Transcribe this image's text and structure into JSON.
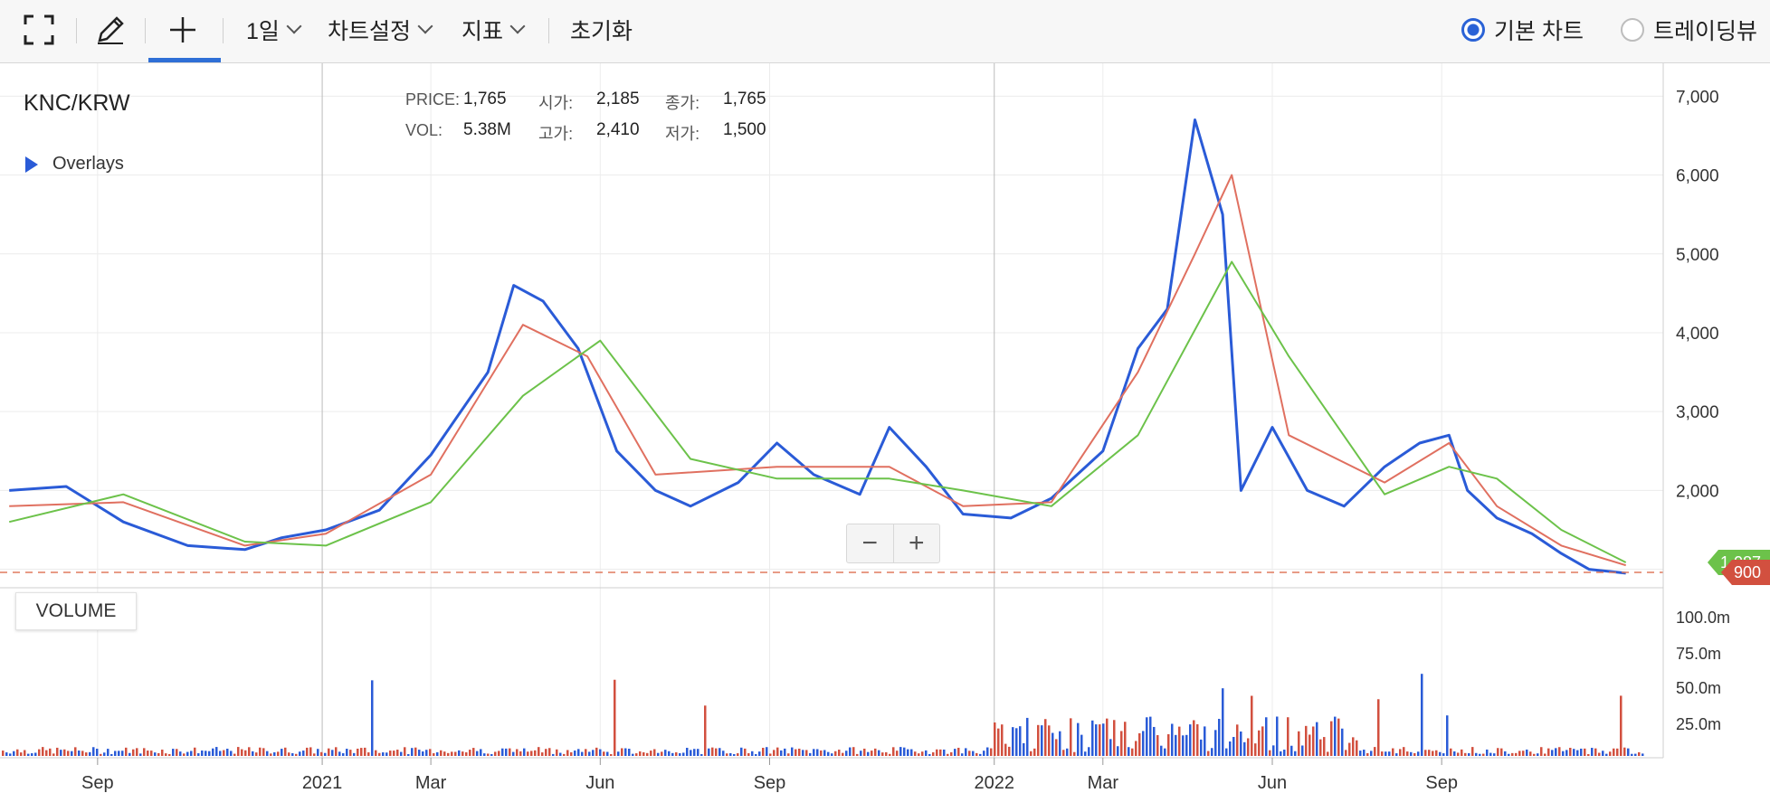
{
  "toolbar": {
    "interval_label": "1일",
    "chart_settings_label": "차트설정",
    "indicators_label": "지표",
    "reset_label": "초기화",
    "basic_chart_label": "기본 차트",
    "tradingview_label": "트레이딩뷰"
  },
  "chart": {
    "symbol": "KNC/KRW",
    "overlays_label": "Overlays",
    "info": {
      "price_key": "PRICE:",
      "price_val": "1,765",
      "open_key": "시가:",
      "open_val": "2,185",
      "close_key": "종가:",
      "close_val": "1,765",
      "vol_key": "VOL:",
      "vol_val": "5.38M",
      "high_key": "고가:",
      "high_val": "2,410",
      "low_key": "저가:",
      "low_val": "1,500"
    },
    "current_price_tag": "900",
    "ma_tag": "1,087",
    "volume_label": "VOLUME",
    "zoom_out_label": "−",
    "zoom_in_label": "+"
  },
  "chart_data": {
    "type": "line",
    "price_axis_ticks": [
      "7,000",
      "6,000",
      "5,000",
      "4,000",
      "3,000",
      "2,000"
    ],
    "volume_axis_ticks": [
      "100.0m",
      "75.0m",
      "50.0m",
      "25.0m"
    ],
    "x_tick_labels": [
      "Sep",
      "2021",
      "Mar",
      "Jun",
      "Sep",
      "2022",
      "Mar",
      "Jun",
      "Sep"
    ],
    "ylim": [
      800,
      7300
    ],
    "series": [
      {
        "color": "#2a5bd7",
        "x": [
          "2020-07-15",
          "2020-08-15",
          "2020-09-15",
          "2020-10-20",
          "2020-11-20",
          "2020-12-10",
          "2021-01-03",
          "2021-02-01",
          "2021-03-01",
          "2021-04-01",
          "2021-04-15",
          "2021-05-01",
          "2021-05-20",
          "2021-06-10",
          "2021-07-01",
          "2021-07-20",
          "2021-08-15",
          "2021-09-05",
          "2021-09-25",
          "2021-10-20",
          "2021-11-05",
          "2021-11-25",
          "2021-12-15",
          "2022-01-10",
          "2022-02-01",
          "2022-03-01",
          "2022-03-20",
          "2022-04-05",
          "2022-04-20",
          "2022-05-05",
          "2022-05-15",
          "2022-06-01",
          "2022-06-20",
          "2022-07-10",
          "2022-08-01",
          "2022-08-20",
          "2022-09-05",
          "2022-09-15",
          "2022-10-01",
          "2022-10-20",
          "2022-11-05",
          "2022-11-20",
          "2022-12-10"
        ],
        "values": [
          2000,
          2050,
          1600,
          1300,
          1250,
          1400,
          1500,
          1750,
          2450,
          3500,
          4600,
          4400,
          3800,
          2500,
          2000,
          1800,
          2100,
          2600,
          2200,
          1950,
          2800,
          2300,
          1700,
          1650,
          1900,
          2500,
          3800,
          4300,
          6700,
          5500,
          2000,
          2800,
          2000,
          1800,
          2300,
          2600,
          2700,
          2000,
          1650,
          1450,
          1200,
          1000,
          950
        ]
      },
      {
        "color": "#e07060",
        "x": [
          "2020-07-15",
          "2020-09-15",
          "2020-11-20",
          "2021-01-03",
          "2021-03-01",
          "2021-04-20",
          "2021-05-25",
          "2021-07-01",
          "2021-09-05",
          "2021-11-05",
          "2021-12-15",
          "2022-02-01",
          "2022-03-20",
          "2022-04-20",
          "2022-05-10",
          "2022-06-10",
          "2022-08-01",
          "2022-09-05",
          "2022-10-01",
          "2022-11-05",
          "2022-12-10"
        ],
        "values": [
          1800,
          1850,
          1300,
          1450,
          2200,
          4100,
          3700,
          2200,
          2300,
          2300,
          1800,
          1850,
          3500,
          5000,
          6000,
          2700,
          2100,
          2600,
          1800,
          1300,
          1050
        ]
      },
      {
        "color": "#6cc24a",
        "x": [
          "2020-07-15",
          "2020-09-15",
          "2020-11-20",
          "2021-01-03",
          "2021-03-01",
          "2021-04-20",
          "2021-06-01",
          "2021-07-20",
          "2021-09-05",
          "2021-11-05",
          "2021-12-15",
          "2022-02-01",
          "2022-03-20",
          "2022-05-10",
          "2022-06-10",
          "2022-08-01",
          "2022-09-05",
          "2022-10-01",
          "2022-11-05",
          "2022-12-10"
        ],
        "values": [
          1600,
          1950,
          1350,
          1300,
          1850,
          3200,
          3900,
          2400,
          2150,
          2150,
          2000,
          1800,
          2700,
          4900,
          3700,
          1950,
          2300,
          2150,
          1500,
          1087
        ]
      }
    ]
  }
}
